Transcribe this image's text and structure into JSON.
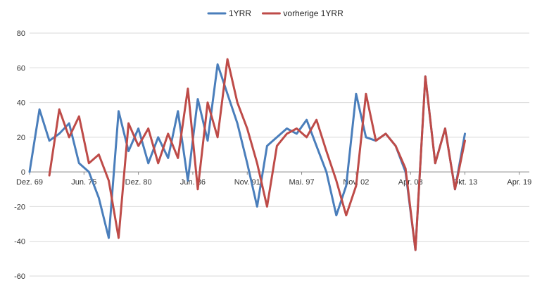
{
  "chart_data": {
    "type": "line",
    "title": "",
    "xlabel": "",
    "ylabel": "",
    "ylim": [
      -60,
      80
    ],
    "yticks": [
      -60,
      -40,
      -20,
      0,
      20,
      40,
      60,
      80
    ],
    "x_categories": [
      "Dez. 69",
      "Jun. 75",
      "Dez. 80",
      "Jun. 86",
      "Nov. 91",
      "Mai. 97",
      "Nov. 02",
      "Apr. 08",
      "Okt. 13",
      "Apr. 19"
    ],
    "x_range": [
      "Dez. 69",
      "Apr. 19"
    ],
    "grid": "horizontal",
    "legend_position": "top-center",
    "colors": {
      "1YRR": "#4a7ebb",
      "vorherige 1YRR": "#be4b48",
      "grid": "#d9d9d9",
      "axis": "#868686"
    },
    "series": [
      {
        "name": "1YRR",
        "x": [
          0,
          1,
          2,
          3,
          4,
          5,
          6,
          7,
          8,
          9,
          10,
          11,
          12,
          13,
          14,
          15,
          16,
          17,
          18,
          19,
          20,
          21,
          22,
          23,
          24,
          25,
          26,
          27,
          28,
          29,
          30,
          31,
          32,
          33,
          34,
          35,
          36,
          37,
          38,
          39,
          40,
          41,
          42,
          43,
          44
        ],
        "values": [
          0,
          36,
          18,
          22,
          28,
          5,
          0,
          -15,
          -38,
          35,
          12,
          25,
          5,
          20,
          8,
          35,
          -5,
          42,
          18,
          62,
          45,
          28,
          5,
          -20,
          15,
          20,
          25,
          22,
          30,
          15,
          0,
          -25,
          -8,
          45,
          20,
          18,
          22,
          15,
          0,
          -45,
          55,
          5,
          25,
          -10,
          22
        ]
      },
      {
        "name": "vorherige 1YRR",
        "x": [
          0,
          1,
          2,
          3,
          4,
          5,
          6,
          7,
          8,
          9,
          10,
          11,
          12,
          13,
          14,
          15,
          16,
          17,
          18,
          19,
          20,
          21,
          22,
          23,
          24,
          25,
          26,
          27,
          28,
          29,
          30,
          31,
          32,
          33,
          34,
          35,
          36,
          37,
          38,
          39,
          40,
          41,
          42,
          43,
          44
        ],
        "values": [
          null,
          null,
          -2,
          36,
          20,
          32,
          5,
          10,
          -5,
          -38,
          28,
          15,
          25,
          5,
          22,
          8,
          48,
          -10,
          40,
          20,
          65,
          40,
          25,
          5,
          -20,
          15,
          22,
          25,
          20,
          30,
          12,
          -5,
          -25,
          -8,
          45,
          18,
          22,
          15,
          2,
          -45,
          55,
          5,
          25,
          -10,
          18
        ]
      }
    ],
    "legend": [
      {
        "label": "1YRR",
        "color": "#4a7ebb"
      },
      {
        "label": "vorherige 1YRR",
        "color": "#be4b48"
      }
    ]
  }
}
